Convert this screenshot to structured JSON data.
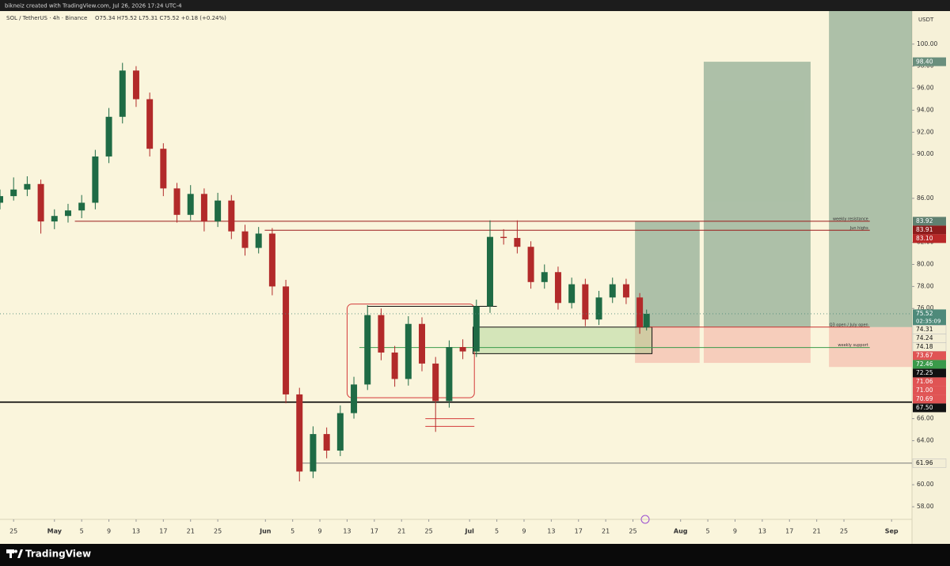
{
  "chart_data": {
    "type": "candlestick",
    "credit": "bikneiz created with TradingView.com, Jul 26, 2026 17:24 UTC-4",
    "title": "SOL / TetherUS · 4h · Binance",
    "ohlc_legend": "O75.34 H75.52 L75.31 C75.52 +0.18 (+0.24%)",
    "currency": "USDT",
    "brand": "TradingView",
    "up_color": "#1f6b45",
    "down_color": "#b22a2a",
    "xlim": [
      -2,
      132
    ],
    "ylim": [
      57,
      103
    ],
    "xticks": [
      {
        "value": 0,
        "label": "25"
      },
      {
        "value": 6,
        "label": "May"
      },
      {
        "value": 10,
        "label": "5"
      },
      {
        "value": 14,
        "label": "9"
      },
      {
        "value": 18,
        "label": "13"
      },
      {
        "value": 22,
        "label": "17"
      },
      {
        "value": 26,
        "label": "21"
      },
      {
        "value": 30,
        "label": "25"
      },
      {
        "value": 37,
        "label": "Jun"
      },
      {
        "value": 41,
        "label": "5"
      },
      {
        "value": 45,
        "label": "9"
      },
      {
        "value": 49,
        "label": "13"
      },
      {
        "value": 53,
        "label": "17"
      },
      {
        "value": 57,
        "label": "21"
      },
      {
        "value": 61,
        "label": "25"
      },
      {
        "value": 67,
        "label": "Jul"
      },
      {
        "value": 71,
        "label": "5"
      },
      {
        "value": 75,
        "label": "9"
      },
      {
        "value": 79,
        "label": "13"
      },
      {
        "value": 83,
        "label": "17"
      },
      {
        "value": 87,
        "label": "21"
      },
      {
        "value": 91,
        "label": "25"
      },
      {
        "value": 98,
        "label": "Aug"
      },
      {
        "value": 102,
        "label": "5"
      },
      {
        "value": 106,
        "label": "9"
      },
      {
        "value": 110,
        "label": "13"
      },
      {
        "value": 114,
        "label": "17"
      },
      {
        "value": 118,
        "label": "21"
      },
      {
        "value": 122,
        "label": "25"
      },
      {
        "value": 129,
        "label": "Sep"
      }
    ],
    "yticks": [
      {
        "value": 58,
        "label": "58.00"
      },
      {
        "value": 60,
        "label": "60.00"
      },
      {
        "value": 64,
        "label": "64.00"
      },
      {
        "value": 66,
        "label": "66.00"
      },
      {
        "value": 76,
        "label": "76.00"
      },
      {
        "value": 78,
        "label": "78.00"
      },
      {
        "value": 80,
        "label": "80.00"
      },
      {
        "value": 82,
        "label": "82.00"
      },
      {
        "value": 86,
        "label": "86.00"
      },
      {
        "value": 90,
        "label": "90.00"
      },
      {
        "value": 92,
        "label": "92.00"
      },
      {
        "value": 94,
        "label": "94.00"
      },
      {
        "value": 96,
        "label": "96.00"
      },
      {
        "value": 98,
        "label": "98.00"
      },
      {
        "value": 100,
        "label": "100.00"
      }
    ],
    "x": [
      -2,
      0,
      2,
      4,
      6,
      8,
      10,
      12,
      14,
      16,
      18,
      20,
      22,
      24,
      26,
      28,
      30,
      32,
      34,
      36,
      38,
      40,
      42,
      44,
      46,
      48,
      50,
      52,
      54,
      56,
      58,
      60,
      62,
      64,
      66,
      68,
      70,
      72,
      74,
      76,
      78,
      80,
      82,
      84,
      86,
      88,
      90,
      92,
      93
    ],
    "candles": [
      [
        85.6,
        86.8,
        85.0,
        86.2
      ],
      [
        86.2,
        87.9,
        85.8,
        86.8
      ],
      [
        86.8,
        88.0,
        86.2,
        87.3
      ],
      [
        87.3,
        87.7,
        82.8,
        83.9
      ],
      [
        83.9,
        85.0,
        83.2,
        84.4
      ],
      [
        84.4,
        85.5,
        83.8,
        84.9
      ],
      [
        84.9,
        86.3,
        84.2,
        85.6
      ],
      [
        85.6,
        90.4,
        85.0,
        89.8
      ],
      [
        89.8,
        94.2,
        89.2,
        93.4
      ],
      [
        93.4,
        98.3,
        92.8,
        97.6
      ],
      [
        97.6,
        98.0,
        94.3,
        95.0
      ],
      [
        95.0,
        95.6,
        89.8,
        90.5
      ],
      [
        90.5,
        91.0,
        86.2,
        86.9
      ],
      [
        86.9,
        87.4,
        83.8,
        84.5
      ],
      [
        84.5,
        87.2,
        84.0,
        86.4
      ],
      [
        86.4,
        86.9,
        83.0,
        83.9
      ],
      [
        83.9,
        86.5,
        83.4,
        85.8
      ],
      [
        85.8,
        86.3,
        82.3,
        83.0
      ],
      [
        83.0,
        83.6,
        80.8,
        81.5
      ],
      [
        81.5,
        83.4,
        81.0,
        82.8
      ],
      [
        82.8,
        83.3,
        77.2,
        78.0
      ],
      [
        78.0,
        78.6,
        67.4,
        68.2
      ],
      [
        68.2,
        68.8,
        60.3,
        61.2
      ],
      [
        61.2,
        65.3,
        60.6,
        64.6
      ],
      [
        64.6,
        65.2,
        62.4,
        63.1
      ],
      [
        63.1,
        67.2,
        62.6,
        66.5
      ],
      [
        66.5,
        69.8,
        66.0,
        69.1
      ],
      [
        69.1,
        76.3,
        68.6,
        75.4
      ],
      [
        75.4,
        76.0,
        71.3,
        72.0
      ],
      [
        72.0,
        72.6,
        68.9,
        69.6
      ],
      [
        69.6,
        75.3,
        69.0,
        74.6
      ],
      [
        74.6,
        75.2,
        70.3,
        71.0
      ],
      [
        71.0,
        71.6,
        64.8,
        67.6
      ],
      [
        67.6,
        73.1,
        67.0,
        72.5
      ],
      [
        72.5,
        73.2,
        71.4,
        72.1
      ],
      [
        72.1,
        76.8,
        71.6,
        76.2
      ],
      [
        76.2,
        84.0,
        75.6,
        82.5
      ],
      [
        82.5,
        83.2,
        81.8,
        82.4
      ],
      [
        82.4,
        84.0,
        81.0,
        81.6
      ],
      [
        81.6,
        82.1,
        77.8,
        78.4
      ],
      [
        78.4,
        80.0,
        77.8,
        79.3
      ],
      [
        79.3,
        79.8,
        75.9,
        76.5
      ],
      [
        76.5,
        78.8,
        76.0,
        78.2
      ],
      [
        78.2,
        78.7,
        74.4,
        75.0
      ],
      [
        75.0,
        77.6,
        74.5,
        77.0
      ],
      [
        77.0,
        78.8,
        76.5,
        78.2
      ],
      [
        78.2,
        78.7,
        76.4,
        77.0
      ],
      [
        77.0,
        77.4,
        73.7,
        74.3
      ],
      [
        74.3,
        75.9,
        74.0,
        75.52
      ]
    ],
    "positions": [
      {
        "x": [
          91.3,
          100.8
        ],
        "target": 83.92,
        "entry": 74.31,
        "stop": 71.06
      },
      {
        "x": [
          101.4,
          117.1
        ],
        "target": 98.4,
        "entry": 74.31,
        "stop": 71.06
      },
      {
        "x": [
          119.8,
          132
        ],
        "target": 103,
        "entry": 74.31,
        "stop": 70.69
      }
    ],
    "zones": [
      {
        "x": [
          67.5,
          93.8
        ],
        "y": [
          71.9,
          74.31
        ],
        "color": "#111111",
        "fill": "rgba(140,200,120,0.35)"
      },
      {
        "x": [
          49,
          67.7
        ],
        "y": [
          67.9,
          76.4
        ],
        "color": "#d43a3a",
        "fill": "none"
      }
    ],
    "hlines": [
      {
        "price": 83.92,
        "x": [
          9,
          125.8
        ],
        "color": "#9b1b1b",
        "label": "weekly resistance"
      },
      {
        "price": 83.1,
        "x": [
          36.9,
          125.8
        ],
        "color": "#9b1b1b",
        "label": "Jun highs"
      },
      {
        "price": 74.31,
        "x": [
          93.3,
          125.8
        ],
        "color": "#c83030",
        "label": "Q3 open / July open"
      },
      {
        "price": 72.46,
        "x": [
          50.8,
          125.8
        ],
        "color": "#3a9a4a",
        "label": "weekly support"
      },
      {
        "price": 76.2,
        "x": [
          52,
          71
        ],
        "color": "#111111"
      },
      {
        "price": 67.5,
        "x": [
          -2,
          132
        ],
        "color": "#000000"
      },
      {
        "price": 66.0,
        "x": [
          60.5,
          67.7
        ],
        "color": "#d43a3a"
      },
      {
        "price": 65.3,
        "x": [
          60.5,
          67.7
        ],
        "color": "#d43a3a"
      },
      {
        "price": 61.96,
        "x": [
          42,
          132
        ],
        "color": "#777777"
      }
    ],
    "price_tags": [
      {
        "value": 98.4,
        "label": "98.40",
        "color": "#6a8f7d"
      },
      {
        "value": 83.92,
        "label": "83.92",
        "color": "#5f8070"
      },
      {
        "value": 83.91,
        "label": "83.91",
        "color": "#8e1c1c"
      },
      {
        "value": 83.1,
        "label": "83.10",
        "color": "#b82828"
      },
      {
        "value": 75.52,
        "label": "75.52",
        "color": "#4e8a7a",
        "countdown": "02:35:09"
      },
      {
        "value": 74.31,
        "label": "74.31",
        "color": "#f3eed6"
      },
      {
        "value": 74.24,
        "label": "74.24",
        "color": "#f3eed6"
      },
      {
        "value": 74.18,
        "label": "74.18",
        "color": "#f3eed6"
      },
      {
        "value": 73.67,
        "label": "73.67",
        "color": "#e05454"
      },
      {
        "value": 72.46,
        "label": "72.46",
        "color": "#3a9a4a"
      },
      {
        "value": 72.25,
        "label": "72.25",
        "color": "#111111"
      },
      {
        "value": 71.06,
        "label": "71.06",
        "color": "#e05454"
      },
      {
        "value": 71.0,
        "label": "71.00",
        "color": "#e05454"
      },
      {
        "value": 70.69,
        "label": "70.69",
        "color": "#e05454"
      },
      {
        "value": 67.5,
        "label": "67.50",
        "color": "#111111"
      },
      {
        "value": 61.96,
        "label": "61.96",
        "color": "#f3eed6"
      }
    ]
  }
}
